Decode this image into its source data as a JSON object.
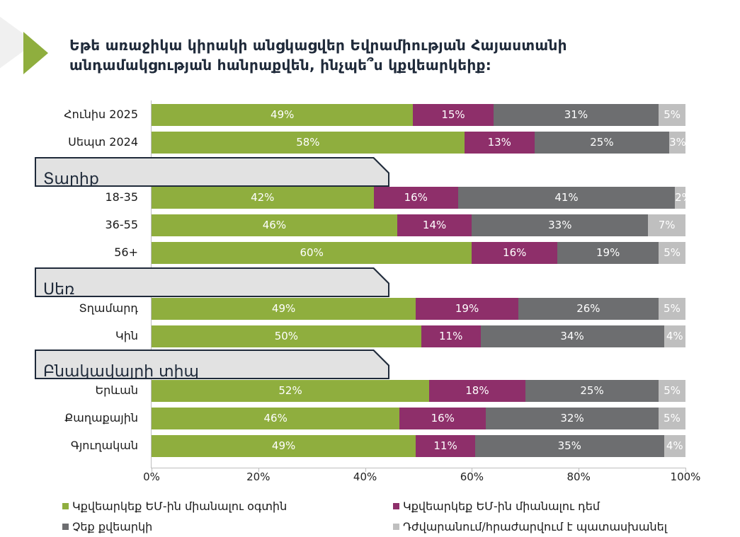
{
  "title": "Եթե առաջիկա կիրակի անցկացվեր Եվրամիության Հայաստանի անդամակցության հանրաքվեն, ինչպե՞ս կքվեարկեիք:",
  "colors": {
    "for": "#8fae3e",
    "against": "#8e2f6a",
    "not_vote": "#6d6e70",
    "refuse": "#bfbfbf",
    "accent": "#8fae3e",
    "title": "#1f2a3a"
  },
  "chart_data": {
    "type": "bar",
    "orientation": "horizontal-stacked-100",
    "xlim": [
      0,
      100
    ],
    "x_ticks": [
      "0%",
      "20%",
      "40%",
      "60%",
      "80%",
      "100%"
    ],
    "series_names": [
      "Կքվեարկեք ԵՄ-ին միանալու օգտին",
      "Կքվեարկեք ԵՄ-ին միանալու դեմ",
      "Չեք քվեարկի",
      "Դժվարանում/հրաժարվում է պատասխանել"
    ],
    "rows": [
      {
        "type": "bar",
        "label": "Հունիս 2025",
        "values": [
          49,
          15,
          31,
          5
        ]
      },
      {
        "type": "bar",
        "label": "Սեպտ 2024",
        "values": [
          58,
          13,
          25,
          3
        ]
      },
      {
        "type": "group",
        "label": "Տարիք"
      },
      {
        "type": "bar",
        "label": "18-35",
        "values": [
          42,
          16,
          41,
          2
        ]
      },
      {
        "type": "bar",
        "label": "36-55",
        "values": [
          46,
          14,
          33,
          7
        ]
      },
      {
        "type": "bar",
        "label": "56+",
        "values": [
          60,
          16,
          19,
          5
        ]
      },
      {
        "type": "group",
        "label": "Սեռ"
      },
      {
        "type": "bar",
        "label": "Տղամարդ",
        "values": [
          49,
          19,
          26,
          5
        ]
      },
      {
        "type": "bar",
        "label": "Կին",
        "values": [
          50,
          11,
          34,
          4
        ]
      },
      {
        "type": "group",
        "label": "Բնակավայրի տիպ"
      },
      {
        "type": "bar",
        "label": "Երևան",
        "values": [
          52,
          18,
          25,
          5
        ]
      },
      {
        "type": "bar",
        "label": "Քաղաքային",
        "values": [
          46,
          16,
          32,
          5
        ]
      },
      {
        "type": "bar",
        "label": "Գյուղական",
        "values": [
          49,
          11,
          35,
          4
        ]
      }
    ],
    "legend_position": "bottom"
  }
}
